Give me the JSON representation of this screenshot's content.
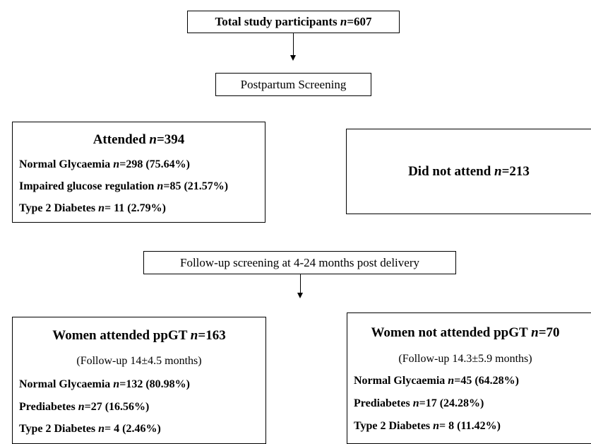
{
  "total": {
    "label": "Total study participants ",
    "n_label": "n",
    "n_value": "=607"
  },
  "postpartum": {
    "label": "Postpartum Screening"
  },
  "attended": {
    "title": "Attended ",
    "n_label": "n",
    "n_value": "=394",
    "rows": [
      {
        "label": "Normal Glycaemia ",
        "n": "n",
        "value": "=298 (75.64%)"
      },
      {
        "label": "Impaired glucose regulation ",
        "n": "n",
        "value": "=85 (21.57%)"
      },
      {
        "label": "Type 2 Diabetes ",
        "n": "n",
        "value": "= 11 (2.79%)"
      }
    ]
  },
  "not_attended": {
    "title": "Did not attend ",
    "n_label": "n",
    "n_value": "=213"
  },
  "followup": {
    "label": "Follow-up screening at 4-24 months post delivery"
  },
  "ppgt_attended": {
    "title": "Women attended ppGT ",
    "n_label": "n",
    "n_value": "=163",
    "subtitle": "(Follow-up 14±4.5 months)",
    "rows": [
      {
        "label": "Normal Glycaemia ",
        "n": "n",
        "value": "=132 (80.98%)"
      },
      {
        "label": "Prediabetes ",
        "n": "n",
        "value": "=27 (16.56%)"
      },
      {
        "label": "Type 2 Diabetes ",
        "n": "n",
        "value": "= 4 (2.46%)"
      }
    ]
  },
  "ppgt_not_attended": {
    "title": "Women not attended ppGT ",
    "n_label": "n",
    "n_value": "=70",
    "subtitle": "(Follow-up 14.3±5.9 months)",
    "rows": [
      {
        "label": "Normal Glycaemia ",
        "n": "n",
        "value": "=45 (64.28%)"
      },
      {
        "label": "Prediabetes ",
        "n": "n",
        "value": "=17 (24.28%)"
      },
      {
        "label": "Type 2 Diabetes ",
        "n": "n",
        "value": "= 8 (11.42%)"
      }
    ]
  }
}
